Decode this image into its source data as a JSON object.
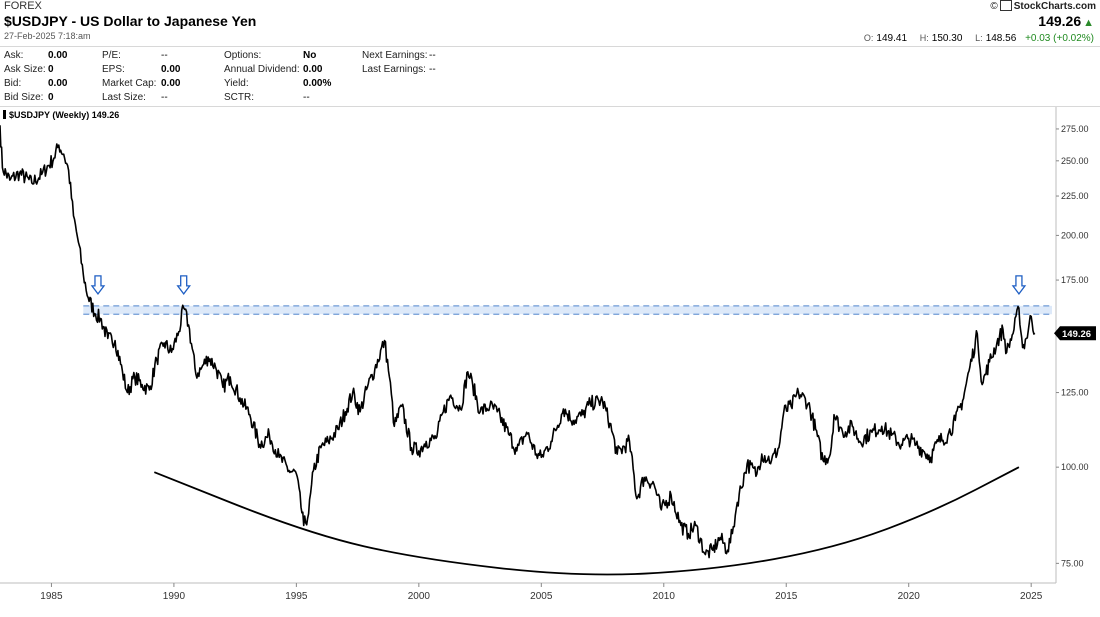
{
  "header": {
    "market": "FOREX",
    "title": "$USDJPY - US Dollar to Japanese Yen",
    "datetime": "27-Feb-2025 7:18:am",
    "brand": "StockCharts.com",
    "copyright": "©",
    "last_price": "149.26",
    "ohlc": {
      "open_label": "O:",
      "open": "149.41",
      "high_label": "H:",
      "high": "150.30",
      "low_label": "L:",
      "low": "148.56",
      "change": "+0.03 (+0.02%)"
    }
  },
  "fundamentals": {
    "col1": [
      {
        "label": "Ask:",
        "value": "0.00"
      },
      {
        "label": "Ask Size:",
        "value": "0"
      },
      {
        "label": "Bid:",
        "value": "0.00"
      },
      {
        "label": "Bid Size:",
        "value": "0"
      }
    ],
    "col2": [
      {
        "label": "P/E:",
        "value": "--"
      },
      {
        "label": "EPS:",
        "value": "0.00"
      },
      {
        "label": "Market Cap:",
        "value": "0.00"
      },
      {
        "label": "Last Size:",
        "value": "--"
      }
    ],
    "col3": [
      {
        "label": "Options:",
        "value": "No"
      },
      {
        "label": "Annual Dividend:",
        "value": "0.00"
      },
      {
        "label": "Yield:",
        "value": "0.00%"
      },
      {
        "label": "SCTR:",
        "value": "--"
      }
    ],
    "col4": [
      {
        "label": "Next Earnings:",
        "value": "--"
      },
      {
        "label": "Last Earnings:",
        "value": "--"
      }
    ]
  },
  "colors": {
    "price_line": "#000000",
    "resistance_band": "#cfe0f7",
    "resistance_line": "#6f9ad6",
    "arrow": "#1f5fc4",
    "last_price_badge": "#000000"
  },
  "chart_data": {
    "type": "line",
    "legend": "$USDJPY (Weekly) 149.26",
    "scale": "log",
    "ylim": [
      72,
      285
    ],
    "y_ticks": [
      "275.00",
      "250.00",
      "225.00",
      "200.00",
      "175.00",
      "150.00",
      "125.00",
      "100.00",
      "75.00"
    ],
    "y_tick_values": [
      275,
      250,
      225,
      200,
      175,
      150,
      125,
      100,
      75
    ],
    "x_ticks": [
      "1985",
      "1990",
      "1995",
      "2000",
      "2005",
      "2010",
      "2015",
      "2020",
      "2025"
    ],
    "x_tick_values": [
      1985,
      1990,
      1995,
      2000,
      2005,
      2010,
      2015,
      2020,
      2025
    ],
    "xlim": [
      1982.9,
      2025.85
    ],
    "last_value_label": "149.26",
    "grid": false,
    "resistance_zone": [
      158,
      162
    ],
    "arrow_markers": [
      1986.9,
      1990.4,
      2024.5
    ],
    "bowl_curve": [
      [
        1989.2,
        98.5
      ],
      [
        1995.5,
        82
      ],
      [
        2000,
        76
      ],
      [
        2006.5,
        72
      ],
      [
        2012,
        73.5
      ],
      [
        2017,
        78.5
      ],
      [
        2021,
        87.5
      ],
      [
        2024.5,
        100
      ]
    ],
    "series": [
      {
        "values": [
          [
            1982.9,
            278
          ],
          [
            1983.0,
            245
          ],
          [
            1983.3,
            236
          ],
          [
            1983.7,
            241
          ],
          [
            1984.2,
            234
          ],
          [
            1984.6,
            240
          ],
          [
            1985.1,
            252
          ],
          [
            1985.3,
            262
          ],
          [
            1985.5,
            255
          ],
          [
            1985.7,
            243
          ],
          [
            1985.9,
            212
          ],
          [
            1986.1,
            196
          ],
          [
            1986.3,
            178
          ],
          [
            1986.5,
            166
          ],
          [
            1986.8,
            158
          ],
          [
            1987.0,
            156
          ],
          [
            1987.3,
            147
          ],
          [
            1987.6,
            146
          ],
          [
            1987.9,
            133
          ],
          [
            1988.1,
            125
          ],
          [
            1988.4,
            131
          ],
          [
            1988.7,
            128
          ],
          [
            1989.0,
            126
          ],
          [
            1989.3,
            138
          ],
          [
            1989.6,
            145
          ],
          [
            1989.9,
            141
          ],
          [
            1990.2,
            150
          ],
          [
            1990.4,
            161
          ],
          [
            1990.6,
            153
          ],
          [
            1990.9,
            132
          ],
          [
            1991.1,
            134
          ],
          [
            1991.4,
            139
          ],
          [
            1991.7,
            135
          ],
          [
            1992.0,
            127
          ],
          [
            1992.3,
            131
          ],
          [
            1992.7,
            123
          ],
          [
            1993.1,
            117
          ],
          [
            1993.5,
            107
          ],
          [
            1993.9,
            110
          ],
          [
            1994.3,
            103
          ],
          [
            1994.7,
            99
          ],
          [
            1995.0,
            98
          ],
          [
            1995.3,
            84
          ],
          [
            1995.5,
            87
          ],
          [
            1995.7,
            99
          ],
          [
            1996.0,
            106
          ],
          [
            1996.3,
            108
          ],
          [
            1996.7,
            112
          ],
          [
            1997.0,
            118
          ],
          [
            1997.3,
            125
          ],
          [
            1997.6,
            118
          ],
          [
            1997.9,
            127
          ],
          [
            1998.2,
            134
          ],
          [
            1998.6,
            146
          ],
          [
            1998.8,
            131
          ],
          [
            1999.0,
            113
          ],
          [
            1999.3,
            120
          ],
          [
            1999.7,
            106
          ],
          [
            2000.0,
            105
          ],
          [
            2000.3,
            108
          ],
          [
            2000.7,
            109
          ],
          [
            2001.0,
            118
          ],
          [
            2001.3,
            124
          ],
          [
            2001.7,
            119
          ],
          [
            2002.0,
            133
          ],
          [
            2002.2,
            128
          ],
          [
            2002.5,
            118
          ],
          [
            2002.9,
            120
          ],
          [
            2003.2,
            118
          ],
          [
            2003.7,
            110
          ],
          [
            2004.0,
            105
          ],
          [
            2004.4,
            111
          ],
          [
            2004.8,
            104
          ],
          [
            2005.0,
            103
          ],
          [
            2005.4,
            108
          ],
          [
            2005.9,
            119
          ],
          [
            2006.3,
            115
          ],
          [
            2006.7,
            117
          ],
          [
            2007.0,
            121
          ],
          [
            2007.5,
            122
          ],
          [
            2007.8,
            114
          ],
          [
            2008.1,
            104
          ],
          [
            2008.6,
            108
          ],
          [
            2008.9,
            91
          ],
          [
            2009.2,
            97
          ],
          [
            2009.6,
            95
          ],
          [
            2009.9,
            88
          ],
          [
            2010.3,
            92
          ],
          [
            2010.7,
            84
          ],
          [
            2011.0,
            82
          ],
          [
            2011.3,
            84
          ],
          [
            2011.7,
            77
          ],
          [
            2012.0,
            78
          ],
          [
            2012.3,
            81
          ],
          [
            2012.6,
            78
          ],
          [
            2012.8,
            82
          ],
          [
            2013.0,
            90
          ],
          [
            2013.4,
            101
          ],
          [
            2013.8,
            98
          ],
          [
            2014.0,
            104
          ],
          [
            2014.4,
            102
          ],
          [
            2014.7,
            106
          ],
          [
            2014.9,
            118
          ],
          [
            2015.2,
            120
          ],
          [
            2015.5,
            125
          ],
          [
            2015.9,
            121
          ],
          [
            2016.2,
            112
          ],
          [
            2016.5,
            102
          ],
          [
            2016.8,
            104
          ],
          [
            2016.95,
            117
          ],
          [
            2017.3,
            111
          ],
          [
            2017.7,
            113
          ],
          [
            2018.0,
            108
          ],
          [
            2018.5,
            111
          ],
          [
            2018.9,
            113
          ],
          [
            2019.3,
            110
          ],
          [
            2019.7,
            107
          ],
          [
            2020.0,
            109
          ],
          [
            2020.3,
            107
          ],
          [
            2020.6,
            105
          ],
          [
            2020.9,
            103
          ],
          [
            2021.2,
            108
          ],
          [
            2021.6,
            110
          ],
          [
            2021.9,
            115
          ],
          [
            2022.2,
            122
          ],
          [
            2022.5,
            135
          ],
          [
            2022.8,
            149
          ],
          [
            2023.0,
            128
          ],
          [
            2023.3,
            137
          ],
          [
            2023.6,
            145
          ],
          [
            2023.85,
            151
          ],
          [
            2024.0,
            141
          ],
          [
            2024.3,
            151
          ],
          [
            2024.5,
            161
          ],
          [
            2024.65,
            143
          ],
          [
            2024.8,
            147
          ],
          [
            2025.0,
            157
          ],
          [
            2025.15,
            149.26
          ]
        ]
      }
    ]
  }
}
